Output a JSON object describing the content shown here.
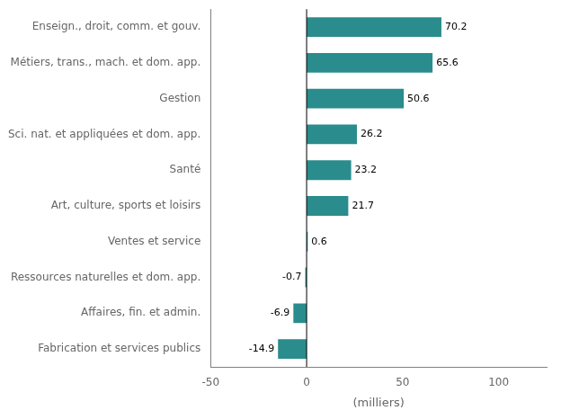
{
  "chart_data": {
    "type": "bar",
    "orientation": "horizontal",
    "categories": [
      "Fabrication et services publics",
      "Affaires, fin. et admin.",
      "Ressources naturelles et dom. app.",
      "Ventes et service",
      "Art, culture, sports et loisirs",
      "Santé",
      "Sci. nat. et appliquées et dom. app.",
      "Gestion",
      "Métiers, trans., mach. et dom. app.",
      "Enseign., droit, comm. et gouv."
    ],
    "values": [
      -14.9,
      -6.9,
      -0.7,
      0.6,
      21.7,
      23.2,
      26.2,
      50.6,
      65.6,
      70.2
    ],
    "color": "#2a8c8c",
    "xlabel": "(milliers)",
    "xlim": [
      -50,
      125
    ],
    "xticks": [
      -50,
      0,
      50,
      100
    ],
    "grid": false,
    "data_labels": true
  }
}
